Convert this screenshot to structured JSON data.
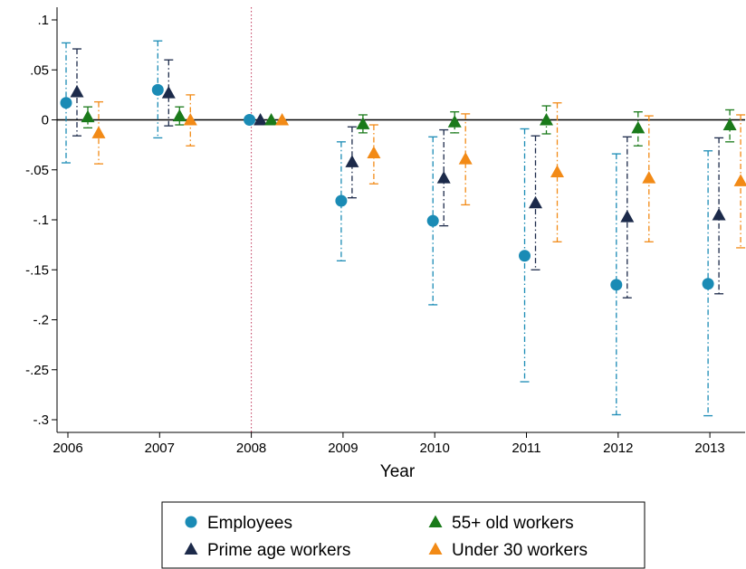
{
  "chart_data": {
    "type": "scatter",
    "title": "",
    "xlabel": "Year",
    "ylabel": "",
    "categories": [
      "2006",
      "2007",
      "2008",
      "2009",
      "2010",
      "2011",
      "2012",
      "2013"
    ],
    "ylim": [
      -0.31,
      0.1
    ],
    "yticks": [
      0.1,
      0.05,
      0,
      -0.05,
      -0.1,
      -0.15,
      -0.2,
      -0.25,
      -0.3
    ],
    "ytick_labels": [
      ".1",
      ".05",
      "0",
      "-.05",
      "-.1",
      "-.15",
      "-.2",
      "-.25",
      "-.3"
    ],
    "reference_line_y": 0,
    "reference_line_x": "2008",
    "legend_position": "bottom",
    "series": [
      {
        "name": "Employees",
        "marker": "circle",
        "color": "#1a8bb5",
        "values": [
          0.017,
          0.03,
          0,
          -0.081,
          -0.101,
          -0.136,
          -0.165,
          -0.164
        ],
        "ci_low": [
          -0.043,
          -0.018,
          0,
          -0.141,
          -0.185,
          -0.262,
          -0.295,
          -0.296
        ],
        "ci_high": [
          0.077,
          0.079,
          0,
          -0.022,
          -0.017,
          -0.009,
          -0.034,
          -0.031
        ]
      },
      {
        "name": "Prime age workers",
        "marker": "triangle",
        "color": "#1c2a4a",
        "values": [
          0.028,
          0.027,
          0,
          -0.042,
          -0.058,
          -0.083,
          -0.097,
          -0.095
        ],
        "ci_low": [
          -0.016,
          -0.006,
          0,
          -0.078,
          -0.106,
          -0.15,
          -0.178,
          -0.174
        ],
        "ci_high": [
          0.071,
          0.06,
          0,
          -0.007,
          -0.01,
          -0.016,
          -0.017,
          -0.018
        ]
      },
      {
        "name": "55+ old workers",
        "marker": "triangle",
        "color": "#1a7a1a",
        "values": [
          0.003,
          0.004,
          0,
          -0.004,
          -0.002,
          0.0,
          -0.008,
          -0.005
        ],
        "ci_low": [
          -0.008,
          -0.005,
          0,
          -0.013,
          -0.013,
          -0.014,
          -0.026,
          -0.022
        ],
        "ci_high": [
          0.013,
          0.013,
          0,
          0.005,
          0.008,
          0.014,
          0.008,
          0.01
        ]
      },
      {
        "name": "Under 30 workers",
        "marker": "triangle",
        "color": "#f28a16",
        "values": [
          -0.013,
          0.0,
          0,
          -0.033,
          -0.039,
          -0.052,
          -0.058,
          -0.061
        ],
        "ci_low": [
          -0.044,
          -0.026,
          0,
          -0.064,
          -0.085,
          -0.122,
          -0.122,
          -0.128
        ],
        "ci_high": [
          0.018,
          0.025,
          0,
          -0.005,
          0.006,
          0.017,
          0.004,
          0.005
        ]
      }
    ]
  }
}
